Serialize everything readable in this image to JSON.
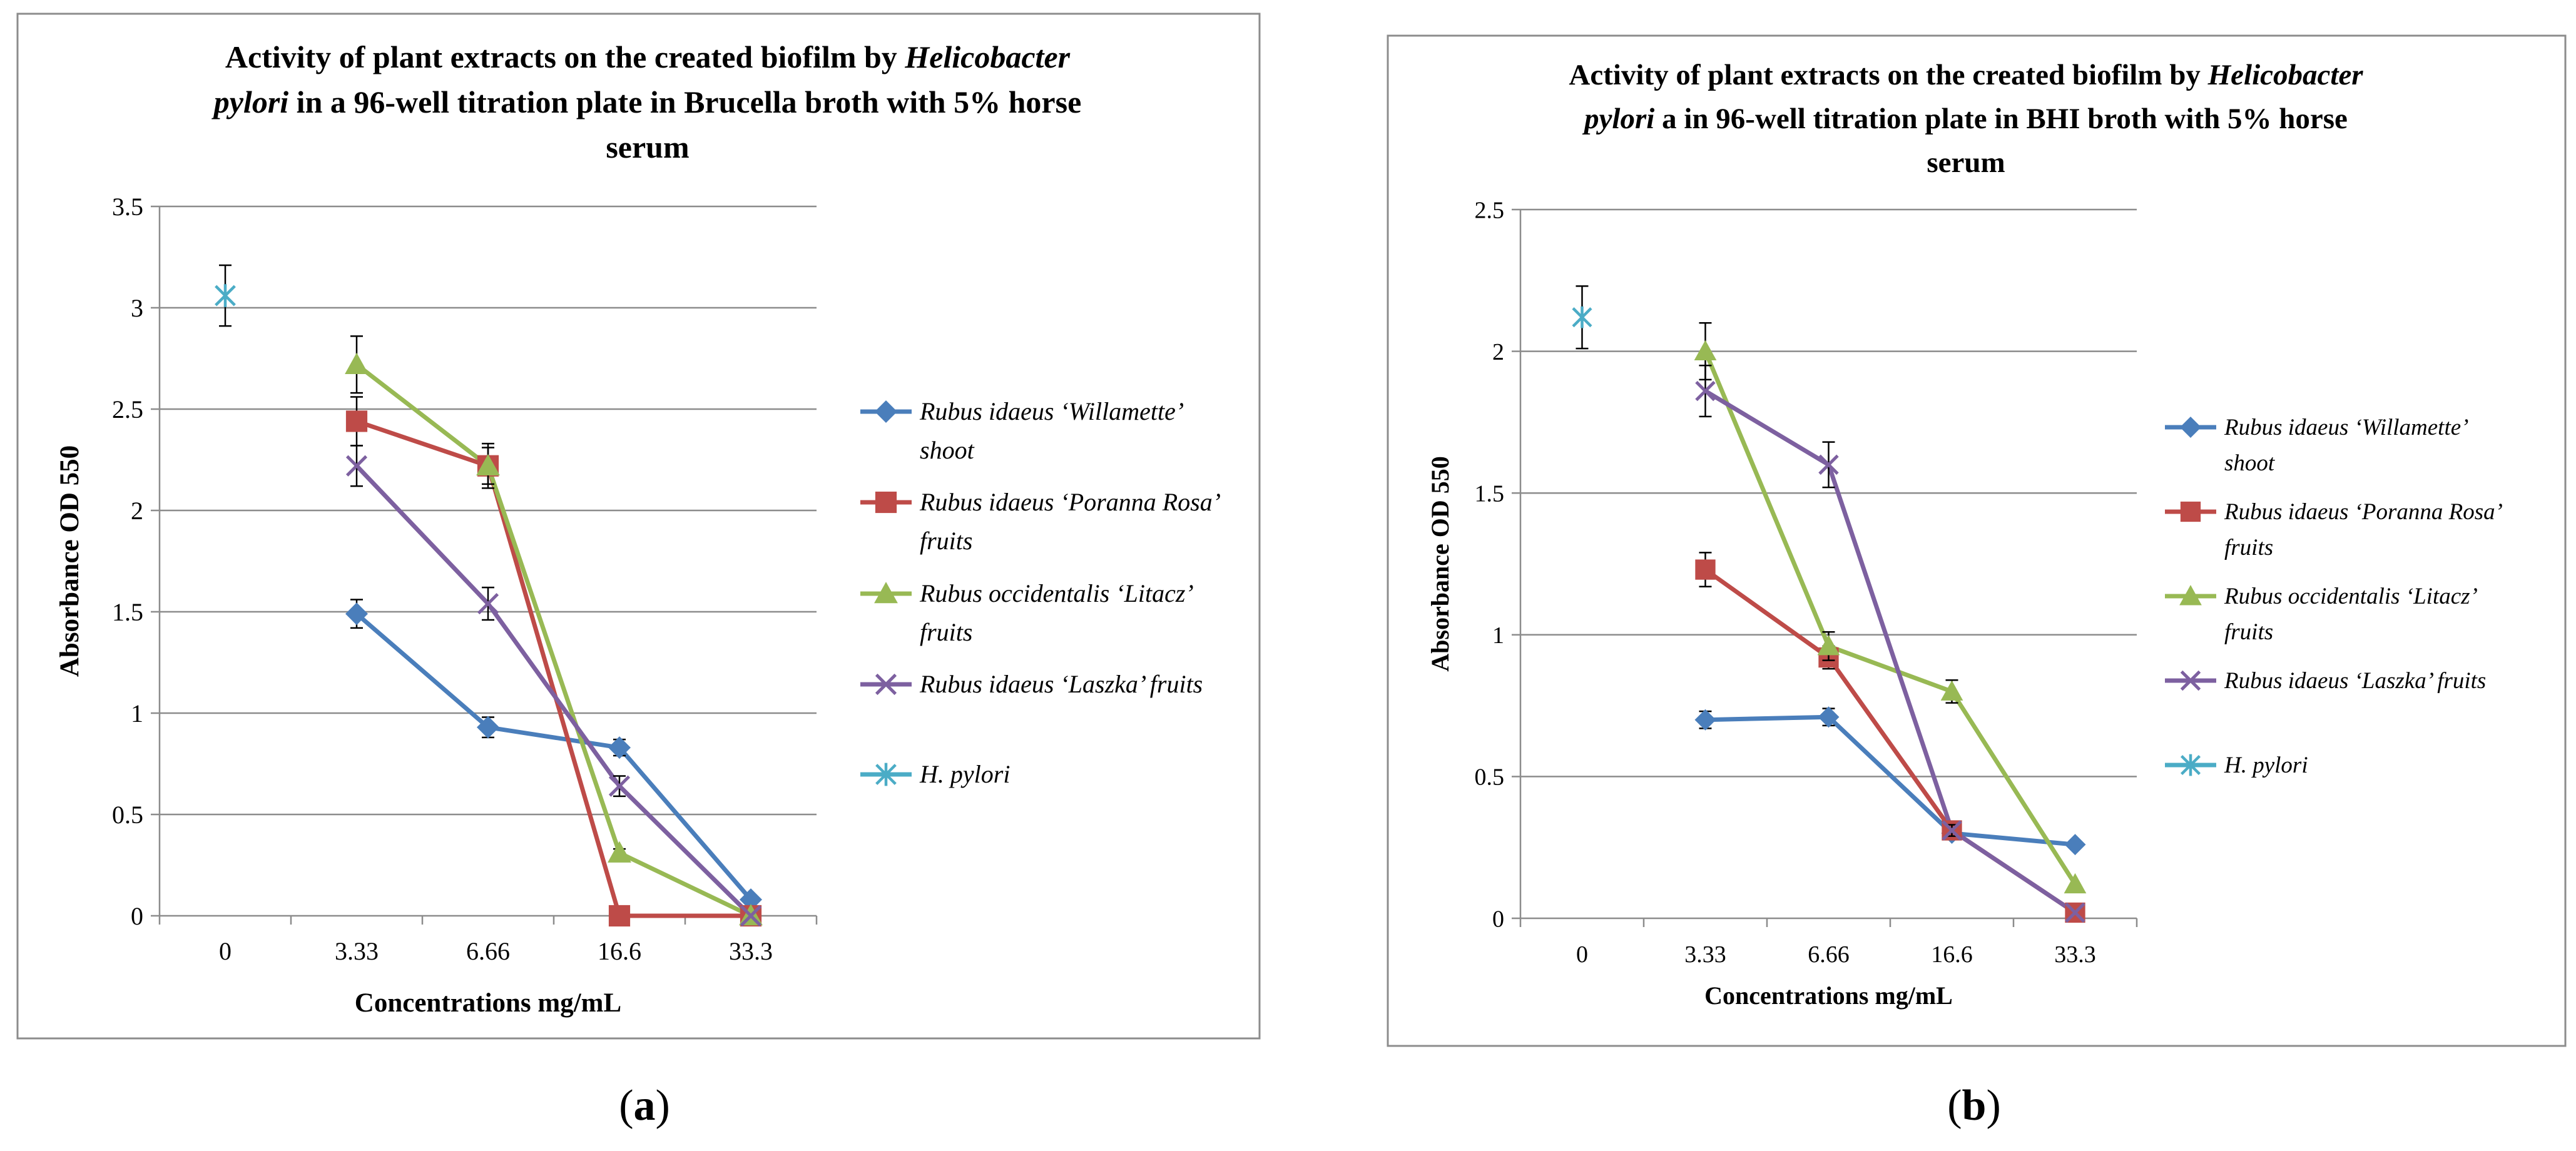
{
  "chart_data": [
    {
      "type": "line",
      "panel_label": "a",
      "title_lines": [
        [
          {
            "t": "Activity of plant extracts on the created biofilm by ",
            "i": false
          },
          {
            "t": "Helicobacter",
            "i": true
          }
        ],
        [
          {
            "t": "pylori",
            "i": true
          },
          {
            "t": " in a 96-well titration plate in Brucella broth with 5% horse",
            "i": false
          }
        ],
        [
          {
            "t": "serum",
            "i": false
          }
        ]
      ],
      "xlabel": "Concentrations mg/mL",
      "ylabel": "Absorbance OD 550",
      "categories": [
        "0",
        "3.33",
        "6.66",
        "16.6",
        "33.3"
      ],
      "yticks": [
        "0",
        "0.5",
        "1",
        "1.5",
        "2",
        "2.5",
        "3",
        "3.5"
      ],
      "ylim": [
        0,
        3.5
      ],
      "grid": true,
      "legend_position": "right",
      "series": [
        {
          "name": "Rubus idaeus ‘Willamette’ shoot",
          "legend_lines": [
            "Rubus idaeus ‘Willamette’",
            "shoot"
          ],
          "color": "#4a7ebb",
          "marker": "diamond",
          "values": [
            null,
            1.49,
            0.93,
            0.83,
            0.08
          ],
          "errors": [
            null,
            0.07,
            0.05,
            0.04,
            0.02
          ]
        },
        {
          "name": "Rubus idaeus ‘Poranna Rosa’ fruits",
          "legend_lines": [
            "Rubus idaeus ‘Poranna Rosa’",
            "fruits"
          ],
          "color": "#be4b48",
          "marker": "square",
          "values": [
            null,
            2.44,
            2.22,
            0.0,
            0.0
          ],
          "errors": [
            null,
            0.12,
            0.11,
            0.0,
            0.0
          ]
        },
        {
          "name": "Rubus occidentalis ‘Litacz’ fruits",
          "legend_lines": [
            "Rubus occidentalis ‘Litacz’",
            "fruits"
          ],
          "color": "#98b954",
          "marker": "triangle",
          "values": [
            null,
            2.72,
            2.22,
            0.31,
            0.0
          ],
          "errors": [
            null,
            0.14,
            0.09,
            0.02,
            0.0
          ]
        },
        {
          "name": "Rubus idaeus ‘Laszka’ fruits",
          "legend_lines": [
            "Rubus idaeus ‘Laszka’ fruits"
          ],
          "color": "#7d60a0",
          "marker": "x",
          "values": [
            null,
            2.22,
            1.54,
            0.64,
            0.0
          ],
          "errors": [
            null,
            0.1,
            0.08,
            0.05,
            0.0
          ]
        },
        {
          "name": "H. pylori",
          "legend_lines": [
            "H. pylori"
          ],
          "color": "#4bacc6",
          "marker": "star",
          "values": [
            3.06,
            null,
            null,
            null,
            null
          ],
          "errors": [
            0.15,
            null,
            null,
            null,
            null
          ]
        }
      ]
    },
    {
      "type": "line",
      "panel_label": "b",
      "title_lines": [
        [
          {
            "t": "Activity of plant extracts on the created biofilm by ",
            "i": false
          },
          {
            "t": "Helicobacter",
            "i": true
          }
        ],
        [
          {
            "t": "pylori",
            "i": true
          },
          {
            "t": " a in 96-well titration plate in BHI  broth with 5% horse",
            "i": false
          }
        ],
        [
          {
            "t": "serum",
            "i": false
          }
        ]
      ],
      "xlabel": "Concentrations mg/mL",
      "ylabel": "Absorbance OD 550",
      "categories": [
        "0",
        "3.33",
        "6.66",
        "16.6",
        "33.3"
      ],
      "yticks": [
        "0",
        "0.5",
        "1",
        "1.5",
        "2",
        "2.5"
      ],
      "ylim": [
        0,
        2.5
      ],
      "grid": true,
      "legend_position": "right",
      "series": [
        {
          "name": "Rubus idaeus ‘Willamette’ shoot",
          "legend_lines": [
            "Rubus idaeus ‘Willamette’",
            "shoot"
          ],
          "color": "#4a7ebb",
          "marker": "diamond",
          "values": [
            null,
            0.7,
            0.71,
            0.3,
            0.26
          ],
          "errors": [
            null,
            0.03,
            0.03,
            0.02,
            0.0
          ]
        },
        {
          "name": "Rubus idaeus ‘Poranna Rosa’ fruits",
          "legend_lines": [
            "Rubus idaeus ‘Poranna Rosa’",
            "fruits"
          ],
          "color": "#be4b48",
          "marker": "square",
          "values": [
            null,
            1.23,
            0.92,
            0.31,
            0.02
          ],
          "errors": [
            null,
            0.06,
            0.04,
            0.02,
            0.0
          ]
        },
        {
          "name": "Rubus occidentalis ‘Litacz’ fruits",
          "legend_lines": [
            "Rubus occidentalis ‘Litacz’",
            "fruits"
          ],
          "color": "#98b954",
          "marker": "triangle",
          "values": [
            null,
            2.0,
            0.96,
            0.8,
            0.12
          ],
          "errors": [
            null,
            0.1,
            0.05,
            0.04,
            0.0
          ]
        },
        {
          "name": "Rubus idaeus ‘Laszka’ fruits",
          "legend_lines": [
            "Rubus idaeus ‘Laszka’ fruits"
          ],
          "color": "#7d60a0",
          "marker": "x",
          "values": [
            null,
            1.86,
            1.6,
            0.31,
            0.02
          ],
          "errors": [
            null,
            0.09,
            0.08,
            0.02,
            0.0
          ]
        },
        {
          "name": "H. pylori",
          "legend_lines": [
            "H. pylori"
          ],
          "color": "#4bacc6",
          "marker": "star",
          "values": [
            2.12,
            null,
            null,
            null,
            null
          ],
          "errors": [
            0.11,
            null,
            null,
            null,
            null
          ]
        }
      ]
    }
  ]
}
